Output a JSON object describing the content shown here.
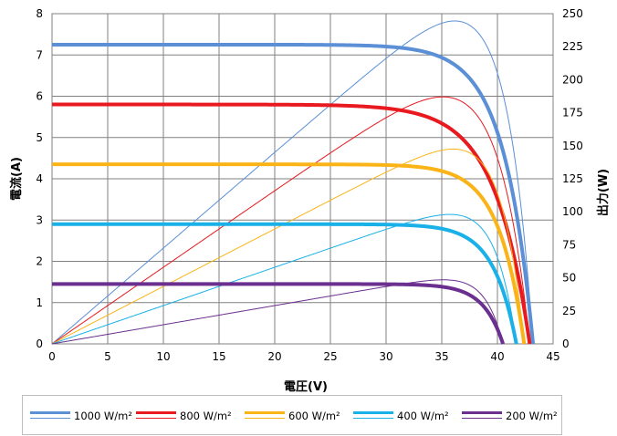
{
  "chart_data": {
    "type": "line",
    "xlabel": "電圧(V)",
    "ylabel": "電流(A)",
    "y2label": "出力(W)",
    "xlim": [
      0,
      45
    ],
    "ylim": [
      0,
      8
    ],
    "y2lim": [
      0,
      250
    ],
    "x_ticks": [
      "0",
      "5",
      "10",
      "15",
      "20",
      "25",
      "30",
      "35",
      "40",
      "45"
    ],
    "y_ticks": [
      "0",
      "1",
      "2",
      "3",
      "4",
      "5",
      "6",
      "7",
      "8"
    ],
    "y2_ticks": [
      "0",
      "25",
      "50",
      "75",
      "100",
      "125",
      "150",
      "175",
      "200",
      "225",
      "250"
    ],
    "grid": true,
    "legend_position": "bottom",
    "series": [
      {
        "name": "1000 W/m²",
        "color": "#5b8fd6",
        "isc": 7.25,
        "voc": 43.2,
        "pmax": 244.5
      },
      {
        "name": "800 W/m²",
        "color": "#e8191f",
        "isc": 5.8,
        "voc": 42.9,
        "pmax": 187.0
      },
      {
        "name": "600 W/m²",
        "color": "#fbb417",
        "isc": 4.35,
        "voc": 42.4,
        "pmax": 147.5
      },
      {
        "name": "400 W/m²",
        "color": "#1ab0e8",
        "isc": 2.9,
        "voc": 41.7,
        "pmax": 98.0
      },
      {
        "name": "200 W/m²",
        "color": "#6b2f8f",
        "isc": 1.45,
        "voc": 40.5,
        "pmax": 48.5
      }
    ]
  },
  "legend": {
    "items": [
      {
        "label": "1000 W/m²"
      },
      {
        "label": "800 W/m²"
      },
      {
        "label": "600 W/m²"
      },
      {
        "label": "400 W/m²"
      },
      {
        "label": "200 W/m²"
      }
    ]
  }
}
